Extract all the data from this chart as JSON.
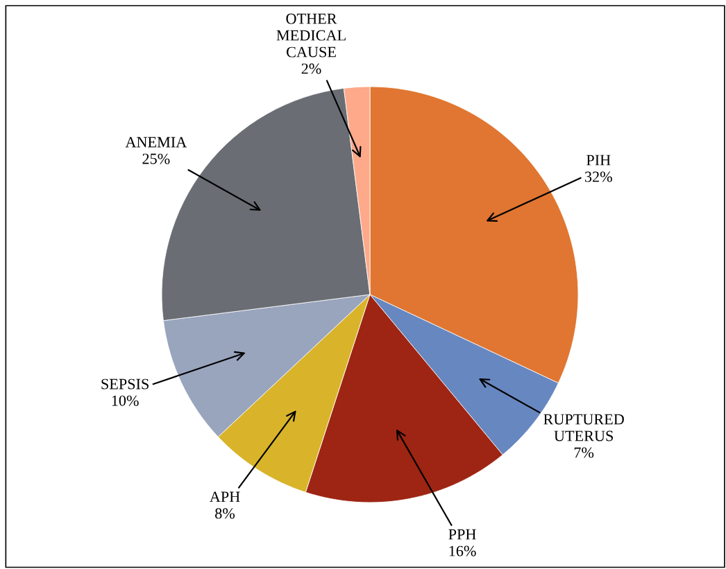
{
  "chart_data": {
    "type": "pie",
    "categories": [
      "PIH",
      "RUPTURED\nUTERUS",
      "PPH",
      "APH",
      "SEPSIS",
      "ANEMIA",
      "OTHER\nMEDICAL\nCAUSE"
    ],
    "values": [
      32,
      7,
      16,
      8,
      10,
      25,
      2
    ],
    "value_labels": [
      "32%",
      "7%",
      "16%",
      "8%",
      "10%",
      "25%",
      "2%"
    ],
    "colors": [
      "#e07631",
      "#6787c0",
      "#9e2513",
      "#d9b42a",
      "#99a4bd",
      "#6a6e74",
      "#fda98a"
    ],
    "legend": false
  }
}
